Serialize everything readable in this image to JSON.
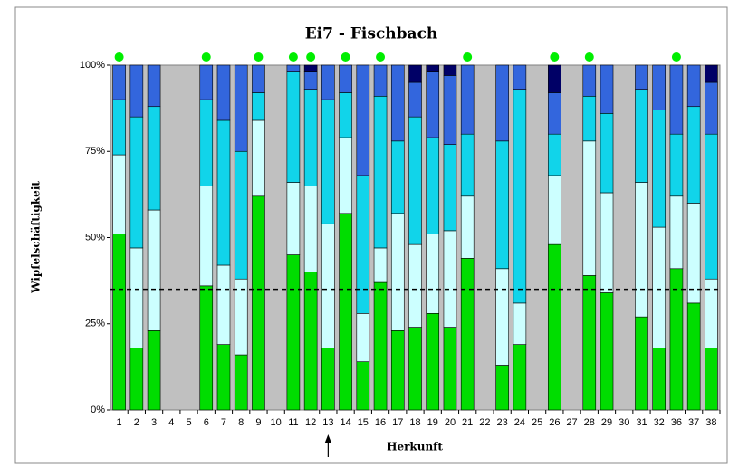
{
  "chart_data": {
    "type": "stacked_bar",
    "title": "Ei7 - Fischbach",
    "x_label": "Herkunft",
    "y_label": "Wipfelschäftigkeit",
    "categories": [
      "1",
      "2",
      "3",
      "4",
      "5",
      "6",
      "7",
      "8",
      "9",
      "10",
      "11",
      "12",
      "13",
      "14",
      "15",
      "16",
      "17",
      "18",
      "19",
      "20",
      "21",
      "22",
      "23",
      "24",
      "25",
      "26",
      "27",
      "28",
      "29",
      "30",
      "31",
      "32",
      "36",
      "37",
      "38"
    ],
    "series": [
      {
        "color": "#00dd00",
        "values": [
          51,
          18,
          23,
          null,
          null,
          36,
          19,
          16,
          62,
          null,
          45,
          40,
          18,
          57,
          14,
          37,
          23,
          24,
          28,
          24,
          44,
          null,
          13,
          19,
          null,
          48,
          null,
          39,
          34,
          null,
          27,
          18,
          41,
          31,
          18
        ]
      },
      {
        "color": "#ccffff",
        "values": [
          23,
          29,
          35,
          null,
          null,
          29,
          23,
          22,
          22,
          null,
          21,
          25,
          36,
          22,
          14,
          10,
          34,
          24,
          23,
          28,
          18,
          null,
          28,
          12,
          null,
          20,
          null,
          39,
          29,
          null,
          39,
          35,
          21,
          29,
          20
        ]
      },
      {
        "color": "#11d4ea",
        "values": [
          16,
          38,
          30,
          null,
          null,
          25,
          42,
          37,
          8,
          null,
          32,
          28,
          36,
          13,
          40,
          44,
          21,
          37,
          28,
          25,
          18,
          null,
          37,
          62,
          null,
          12,
          null,
          13,
          23,
          null,
          27,
          34,
          18,
          28,
          42
        ]
      },
      {
        "color": "#3366dd",
        "values": [
          10,
          15,
          12,
          null,
          null,
          10,
          16,
          25,
          8,
          null,
          2,
          5,
          10,
          8,
          32,
          9,
          22,
          10,
          19,
          20,
          20,
          null,
          22,
          7,
          null,
          12,
          null,
          9,
          14,
          null,
          7,
          13,
          20,
          12,
          15
        ]
      },
      {
        "color": "#000066",
        "values": [
          0,
          0,
          0,
          null,
          null,
          0,
          0,
          0,
          0,
          null,
          0,
          2,
          0,
          0,
          0,
          0,
          0,
          5,
          2,
          3,
          0,
          null,
          0,
          0,
          null,
          8,
          null,
          0,
          0,
          null,
          0,
          0,
          0,
          0,
          5
        ]
      }
    ],
    "highlighted": [
      true,
      false,
      false,
      false,
      false,
      true,
      false,
      false,
      true,
      false,
      true,
      true,
      false,
      true,
      false,
      true,
      false,
      false,
      false,
      false,
      true,
      false,
      false,
      false,
      false,
      true,
      false,
      true,
      false,
      false,
      false,
      false,
      true,
      false,
      false
    ],
    "highlight_color": "#00ee00",
    "reference_line": 35,
    "arrow_category": 12,
    "ylim": [
      0,
      100
    ],
    "yticks": [
      {
        "value": 0,
        "label": "0%"
      },
      {
        "value": 25,
        "label": "25%"
      },
      {
        "value": 50,
        "label": "50%"
      },
      {
        "value": 75,
        "label": "75%"
      },
      {
        "value": 100,
        "label": "100%"
      }
    ],
    "background": "#c0c0c0"
  }
}
